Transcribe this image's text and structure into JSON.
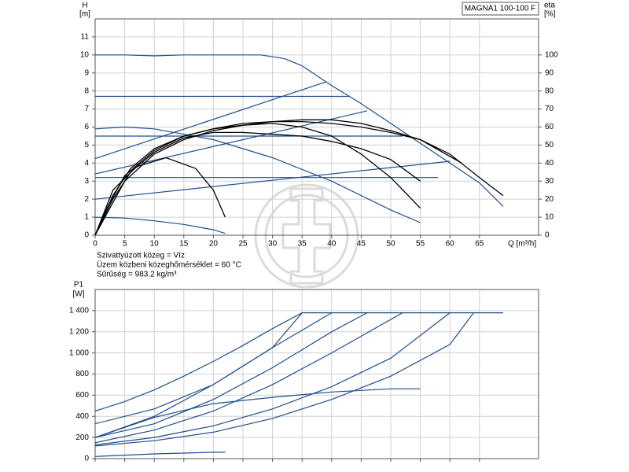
{
  "chart_data": [
    {
      "type": "line",
      "title": "MAGNA1 100-100 F",
      "y_label": "H",
      "y_unit": "[m]",
      "y2_label": "eta",
      "y2_unit": "[%]",
      "x_label": "Q [m³/h]",
      "notes": [
        "Szivattyúzott közeg = Víz",
        "Üzem közbeni közeghőmérséklet = 60 °C",
        "Sűrűség = 983.2 kg/m³"
      ],
      "xlim": [
        0,
        75
      ],
      "xticks": [
        0,
        5,
        10,
        15,
        20,
        25,
        30,
        35,
        40,
        45,
        50,
        55,
        60,
        65
      ],
      "ylim": [
        0,
        12
      ],
      "yticks": [
        0,
        1,
        2,
        3,
        4,
        5,
        6,
        7,
        8,
        9,
        10,
        11
      ],
      "y2lim": [
        0,
        120
      ],
      "y2ticks": [
        0,
        10,
        20,
        30,
        40,
        50,
        60,
        70,
        80,
        90,
        100
      ],
      "grid": true,
      "show_xtick_labels": true,
      "series": [
        {
          "color": "#1f4e8c",
          "x": [
            0,
            5,
            10,
            15,
            20,
            25,
            28,
            32,
            35,
            40,
            45,
            50,
            55,
            60,
            65,
            69
          ],
          "values": [
            10,
            10,
            9.95,
            10,
            10,
            10,
            10,
            9.8,
            9.4,
            8.3,
            7.3,
            6.2,
            5.1,
            4,
            2.9,
            1.6
          ]
        },
        {
          "color": "#1f4e8c",
          "x": [
            0,
            43
          ],
          "values": [
            7.7,
            7.7
          ]
        },
        {
          "color": "#1f4e8c",
          "x": [
            0,
            52
          ],
          "values": [
            5.5,
            5.5
          ]
        },
        {
          "color": "#1f4e8c",
          "x": [
            0,
            58
          ],
          "values": [
            3.2,
            3.2
          ]
        },
        {
          "color": "#1f4e8c",
          "x": [
            0,
            39
          ],
          "values": [
            4.25,
            8.5
          ]
        },
        {
          "color": "#1f4e8c",
          "x": [
            0,
            46
          ],
          "values": [
            3.4,
            6.9
          ]
        },
        {
          "color": "#1f4e8c",
          "x": [
            0,
            60
          ],
          "values": [
            2,
            4.1
          ]
        },
        {
          "color": "#1f4e8c",
          "x": [
            0,
            5,
            10,
            20,
            30,
            40,
            50,
            55
          ],
          "values": [
            5.9,
            6,
            5.9,
            5.3,
            4.3,
            3,
            1.4,
            0.7
          ]
        },
        {
          "color": "#1f4e8c",
          "x": [
            0,
            5,
            10,
            15,
            20,
            22
          ],
          "values": [
            1,
            0.95,
            0.8,
            0.6,
            0.3,
            0.1
          ]
        },
        {
          "color": "#000000",
          "axis": "y2",
          "x": [
            0,
            2,
            5,
            10,
            15,
            20,
            25,
            30,
            35,
            40,
            45,
            50,
            55,
            60,
            65,
            69
          ],
          "values": [
            0,
            12,
            30,
            45,
            53,
            58,
            61,
            63,
            64,
            64,
            62,
            58,
            53,
            45,
            32,
            22
          ]
        },
        {
          "color": "#000000",
          "axis": "y2",
          "x": [
            0,
            2,
            5,
            10,
            15,
            20,
            25,
            30,
            35,
            40,
            45,
            50,
            55,
            62
          ],
          "values": [
            0,
            15,
            33,
            47,
            55,
            59,
            62,
            63,
            63,
            62,
            60,
            57,
            53,
            40
          ]
        },
        {
          "color": "#000000",
          "axis": "y2",
          "x": [
            0,
            3,
            6,
            10,
            15,
            20,
            25,
            30,
            35,
            40,
            45,
            50,
            55
          ],
          "values": [
            0,
            22,
            37,
            48,
            55,
            59,
            61,
            62,
            60,
            55,
            45,
            32,
            15
          ]
        },
        {
          "color": "#000000",
          "axis": "y2",
          "x": [
            0,
            3,
            7,
            12,
            17,
            20,
            22
          ],
          "values": [
            0,
            25,
            38,
            43,
            37,
            25,
            10
          ]
        },
        {
          "color": "#000000",
          "axis": "y2",
          "x": [
            0,
            3,
            6,
            10,
            15,
            20,
            25,
            30,
            35,
            40,
            45,
            50,
            55
          ],
          "values": [
            0,
            20,
            35,
            46,
            54,
            57,
            57,
            56,
            55,
            52,
            48,
            42,
            30
          ]
        }
      ]
    },
    {
      "type": "line",
      "y_label": "P1",
      "y_unit": "[W]",
      "xlim": [
        0,
        75
      ],
      "xticks": [
        0,
        5,
        10,
        15,
        20,
        25,
        30,
        35,
        40,
        45,
        50,
        55,
        60,
        65
      ],
      "ylim": [
        0,
        1600
      ],
      "yticks": [
        0,
        200,
        400,
        600,
        800,
        {
          "value": 1000,
          "label": "1 000"
        },
        {
          "value": 1200,
          "label": "1 200"
        },
        {
          "value": 1400,
          "label": "1 400"
        }
      ],
      "grid": true,
      "show_xtick_labels": false,
      "series": [
        {
          "color": "#1f4e8c",
          "x": [
            0,
            5,
            10,
            15,
            20,
            25,
            30,
            35,
            69
          ],
          "values": [
            450,
            540,
            650,
            780,
            920,
            1070,
            1230,
            1380,
            1380
          ]
        },
        {
          "color": "#1f4e8c",
          "x": [
            0,
            10,
            20,
            30,
            35
          ],
          "values": [
            330,
            470,
            700,
            1050,
            1380
          ]
        },
        {
          "color": "#1f4e8c",
          "x": [
            0,
            10,
            20,
            30,
            40
          ],
          "values": [
            200,
            400,
            700,
            1050,
            1380
          ]
        },
        {
          "color": "#1f4e8c",
          "x": [
            0,
            10,
            20,
            30,
            40,
            46
          ],
          "values": [
            200,
            330,
            560,
            860,
            1200,
            1380
          ]
        },
        {
          "color": "#1f4e8c",
          "x": [
            0,
            10,
            20,
            30,
            40,
            52
          ],
          "values": [
            150,
            270,
            450,
            700,
            1000,
            1380
          ]
        },
        {
          "color": "#1f4e8c",
          "x": [
            0,
            10,
            20,
            30,
            40,
            50,
            60
          ],
          "values": [
            130,
            200,
            310,
            470,
            680,
            950,
            1380
          ]
        },
        {
          "color": "#1f4e8c",
          "x": [
            0,
            10,
            20,
            30,
            40,
            50,
            60,
            64
          ],
          "values": [
            120,
            170,
            250,
            380,
            560,
            780,
            1080,
            1380
          ]
        },
        {
          "color": "#1f4e8c",
          "x": [
            0,
            10,
            20,
            30,
            40,
            50,
            55
          ],
          "values": [
            200,
            390,
            520,
            580,
            630,
            660,
            660
          ]
        },
        {
          "color": "#1f4e8c",
          "x": [
            0,
            10,
            20,
            22
          ],
          "values": [
            20,
            45,
            60,
            60
          ]
        }
      ]
    }
  ]
}
